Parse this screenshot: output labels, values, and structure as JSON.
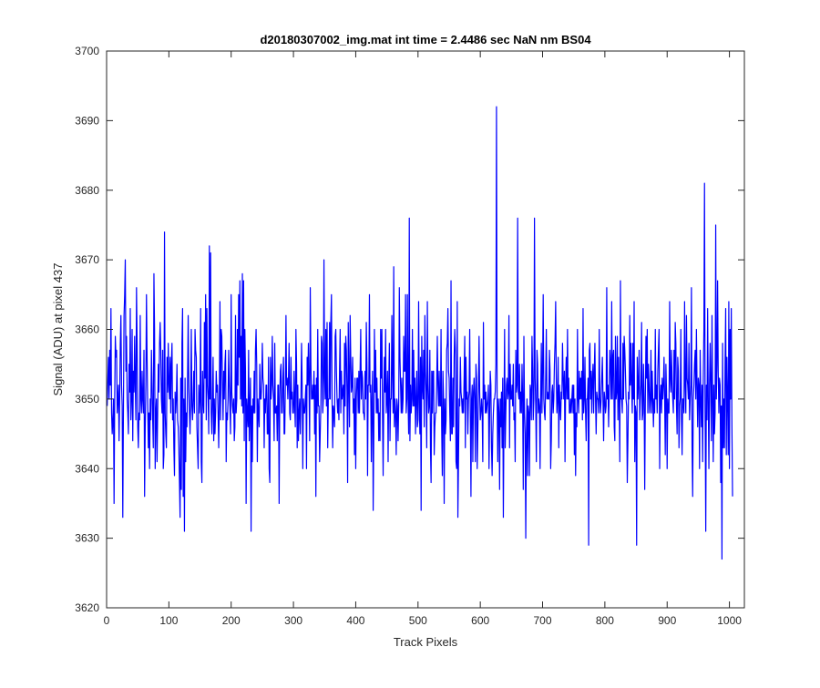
{
  "window": {
    "background": "#ffffff"
  },
  "chart_data": {
    "type": "line",
    "title": "d20180307002_img.mat int time = 2.4486 sec  NaN nm BS04",
    "xlabel": "Track Pixels",
    "ylabel": "Signal (ADU) at pixel 437",
    "xlim": [
      0,
      1024
    ],
    "ylim": [
      3620,
      3700
    ],
    "xticks": [
      0,
      100,
      200,
      300,
      400,
      500,
      600,
      700,
      800,
      900,
      1000
    ],
    "yticks": [
      3620,
      3630,
      3640,
      3650,
      3660,
      3670,
      3680,
      3690,
      3700
    ],
    "grid": false,
    "legend": "none",
    "series": [
      {
        "color": "#0000ff",
        "x_start": 1,
        "x_step": 1,
        "values": [
          3649,
          3653,
          3656,
          3650,
          3657,
          3652,
          3663,
          3648,
          3645,
          3647,
          3650,
          3635,
          3650,
          3659,
          3656,
          3657,
          3648,
          3650,
          3652,
          3644,
          3650,
          3658,
          3662,
          3652,
          3649,
          3633,
          3648,
          3662,
          3665,
          3670,
          3654,
          3659,
          3650,
          3648,
          3645,
          3655,
          3651,
          3663,
          3647,
          3650,
          3660,
          3644,
          3654,
          3651,
          3659,
          3652,
          3647,
          3666,
          3658,
          3646,
          3643,
          3648,
          3647,
          3662,
          3650,
          3648,
          3654,
          3650,
          3648,
          3657,
          3636,
          3646,
          3652,
          3665,
          3656,
          3649,
          3643,
          3648,
          3640,
          3650,
          3647,
          3657,
          3652,
          3647,
          3643,
          3668,
          3660,
          3640,
          3648,
          3650,
          3641,
          3648,
          3655,
          3651,
          3658,
          3661,
          3657,
          3650,
          3648,
          3657,
          3640,
          3642,
          3674,
          3648,
          3645,
          3643,
          3656,
          3651,
          3658,
          3652,
          3650,
          3656,
          3648,
          3655,
          3658,
          3647,
          3650,
          3643,
          3639,
          3651,
          3648,
          3650,
          3655,
          3647,
          3646,
          3643,
          3638,
          3633,
          3653,
          3637,
          3658,
          3663,
          3636,
          3650,
          3631,
          3653,
          3641,
          3648,
          3646,
          3653,
          3662,
          3652,
          3648,
          3645,
          3650,
          3660,
          3649,
          3647,
          3650,
          3654,
          3648,
          3660,
          3657,
          3656,
          3646,
          3643,
          3640,
          3652,
          3648,
          3650,
          3663,
          3641,
          3638,
          3654,
          3650,
          3648,
          3661,
          3653,
          3665,
          3647,
          3663,
          3652,
          3650,
          3645,
          3672,
          3650,
          3671,
          3648,
          3645,
          3650,
          3656,
          3644,
          3650,
          3645,
          3648,
          3654,
          3651,
          3652,
          3648,
          3643,
          3650,
          3664,
          3647,
          3660,
          3659,
          3652,
          3647,
          3654,
          3650,
          3655,
          3657,
          3641,
          3648,
          3647,
          3650,
          3657,
          3652,
          3649,
          3645,
          3665,
          3651,
          3649,
          3648,
          3650,
          3644,
          3646,
          3662,
          3648,
          3650,
          3660,
          3652,
          3665,
          3656,
          3667,
          3650,
          3659,
          3649,
          3668,
          3648,
          3667,
          3644,
          3660,
          3654,
          3635,
          3650,
          3648,
          3646,
          3657,
          3644,
          3649,
          3653,
          3631,
          3649,
          3641,
          3650,
          3648,
          3654,
          3648,
          3657,
          3660,
          3655,
          3641,
          3650,
          3648,
          3646,
          3655,
          3650,
          3650,
          3652,
          3658,
          3653,
          3652,
          3643,
          3650,
          3648,
          3652,
          3652,
          3645,
          3645,
          3656,
          3640,
          3638,
          3656,
          3650,
          3652,
          3659,
          3652,
          3650,
          3644,
          3658,
          3648,
          3648,
          3649,
          3644,
          3652,
          3652,
          3635,
          3650,
          3654,
          3655,
          3648,
          3648,
          3653,
          3656,
          3645,
          3645,
          3652,
          3662,
          3652,
          3653,
          3650,
          3653,
          3658,
          3648,
          3647,
          3656,
          3650,
          3651,
          3648,
          3648,
          3654,
          3649,
          3646,
          3660,
          3655,
          3643,
          3652,
          3644,
          3648,
          3650,
          3645,
          3650,
          3658,
          3652,
          3640,
          3650,
          3648,
          3648,
          3650,
          3652,
          3640,
          3656,
          3652,
          3658,
          3652,
          3644,
          3666,
          3655,
          3650,
          3650,
          3652,
          3650,
          3654,
          3645,
          3652,
          3636,
          3653,
          3648,
          3660,
          3649,
          3649,
          3641,
          3645,
          3649,
          3659,
          3658,
          3648,
          3650,
          3670,
          3653,
          3650,
          3660,
          3649,
          3661,
          3643,
          3650,
          3650,
          3661,
          3650,
          3661,
          3665,
          3650,
          3643,
          3649,
          3648,
          3646,
          3659,
          3660,
          3654,
          3650,
          3648,
          3650,
          3647,
          3654,
          3660,
          3648,
          3654,
          3650,
          3651,
          3652,
          3645,
          3658,
          3649,
          3659,
          3657,
          3651,
          3638,
          3661,
          3653,
          3646,
          3662,
          3656,
          3651,
          3652,
          3656,
          3648,
          3650,
          3642,
          3653,
          3640,
          3650,
          3653,
          3653,
          3648,
          3654,
          3648,
          3654,
          3660,
          3650,
          3654,
          3653,
          3648,
          3648,
          3647,
          3654,
          3650,
          3661,
          3655,
          3639,
          3652,
          3652,
          3665,
          3651,
          3652,
          3641,
          3650,
          3654,
          3634,
          3645,
          3660,
          3651,
          3657,
          3648,
          3653,
          3648,
          3650,
          3644,
          3648,
          3644,
          3660,
          3653,
          3660,
          3648,
          3639,
          3650,
          3656,
          3651,
          3660,
          3648,
          3650,
          3654,
          3641,
          3652,
          3658,
          3644,
          3650,
          3650,
          3662,
          3654,
          3648,
          3669,
          3646,
          3650,
          3648,
          3642,
          3650,
          3649,
          3644,
          3649,
          3666,
          3656,
          3652,
          3648,
          3653,
          3648,
          3650,
          3659,
          3654,
          3654,
          3665,
          3648,
          3650,
          3665,
          3650,
          3645,
          3676,
          3644,
          3652,
          3648,
          3650,
          3660,
          3649,
          3657,
          3649,
          3653,
          3645,
          3650,
          3654,
          3646,
          3647,
          3664,
          3650,
          3645,
          3656,
          3634,
          3659,
          3652,
          3650,
          3657,
          3646,
          3662,
          3654,
          3651,
          3643,
          3664,
          3652,
          3648,
          3649,
          3657,
          3643,
          3638,
          3654,
          3648,
          3654,
          3654,
          3642,
          3646,
          3648,
          3648,
          3652,
          3659,
          3652,
          3649,
          3654,
          3649,
          3649,
          3660,
          3646,
          3639,
          3654,
          3650,
          3635,
          3650,
          3645,
          3647,
          3657,
          3658,
          3663,
          3654,
          3653,
          3648,
          3644,
          3667,
          3645,
          3645,
          3653,
          3646,
          3656,
          3660,
          3657,
          3641,
          3640,
          3664,
          3633,
          3641,
          3650,
          3649,
          3656,
          3651,
          3650,
          3648,
          3650,
          3648,
          3653,
          3659,
          3643,
          3656,
          3650,
          3651,
          3645,
          3650,
          3651,
          3660,
          3648,
          3636,
          3650,
          3652,
          3641,
          3651,
          3653,
          3650,
          3641,
          3655,
          3653,
          3640,
          3645,
          3651,
          3659,
          3651,
          3647,
          3648,
          3650,
          3648,
          3641,
          3661,
          3650,
          3652,
          3648,
          3651,
          3648,
          3649,
          3650,
          3652,
          3640,
          3648,
          3654,
          3652,
          3643,
          3639,
          3645,
          3648,
          3650,
          3650,
          3651,
          3655,
          3692,
          3650,
          3641,
          3650,
          3648,
          3637,
          3650,
          3646,
          3651,
          3643,
          3653,
          3633,
          3647,
          3660,
          3643,
          3648,
          3652,
          3653,
          3650,
          3651,
          3662,
          3643,
          3655,
          3650,
          3650,
          3652,
          3649,
          3655,
          3647,
          3648,
          3641,
          3657,
          3651,
          3652,
          3676,
          3651,
          3650,
          3655,
          3648,
          3651,
          3648,
          3655,
          3650,
          3637,
          3659,
          3648,
          3645,
          3630,
          3645,
          3650,
          3639,
          3649,
          3648,
          3639,
          3652,
          3651,
          3647,
          3659,
          3654,
          3647,
          3650,
          3676,
          3653,
          3649,
          3641,
          3657,
          3655,
          3648,
          3650,
          3649,
          3640,
          3651,
          3658,
          3648,
          3654,
          3665,
          3650,
          3648,
          3647,
          3653,
          3660,
          3650,
          3651,
          3650,
          3650,
          3657,
          3654,
          3640,
          3644,
          3651,
          3652,
          3648,
          3650,
          3655,
          3658,
          3664,
          3653,
          3648,
          3650,
          3656,
          3643,
          3652,
          3649,
          3647,
          3651,
          3650,
          3658,
          3653,
          3650,
          3654,
          3641,
          3652,
          3656,
          3650,
          3660,
          3650,
          3653,
          3648,
          3648,
          3650,
          3648,
          3650,
          3652,
          3648,
          3652,
          3642,
          3650,
          3639,
          3648,
          3646,
          3660,
          3650,
          3648,
          3654,
          3650,
          3653,
          3650,
          3654,
          3647,
          3663,
          3648,
          3650,
          3656,
          3648,
          3644,
          3650,
          3650,
          3653,
          3629,
          3657,
          3658,
          3650,
          3654,
          3648,
          3653,
          3655,
          3648,
          3654,
          3658,
          3650,
          3645,
          3651,
          3650,
          3650,
          3648,
          3660,
          3650,
          3648,
          3650,
          3653,
          3656,
          3650,
          3644,
          3651,
          3650,
          3648,
          3649,
          3666,
          3650,
          3652,
          3646,
          3651,
          3657,
          3655,
          3650,
          3664,
          3650,
          3656,
          3657,
          3646,
          3644,
          3659,
          3650,
          3651,
          3659,
          3647,
          3656,
          3650,
          3641,
          3667,
          3650,
          3650,
          3648,
          3658,
          3650,
          3659,
          3657,
          3654,
          3650,
          3649,
          3638,
          3644,
          3651,
          3650,
          3662,
          3652,
          3658,
          3652,
          3648,
          3658,
          3650,
          3664,
          3641,
          3649,
          3648,
          3629,
          3656,
          3650,
          3652,
          3657,
          3647,
          3650,
          3652,
          3661,
          3647,
          3648,
          3655,
          3650,
          3637,
          3650,
          3659,
          3653,
          3660,
          3648,
          3655,
          3652,
          3648,
          3650,
          3657,
          3648,
          3654,
          3650,
          3646,
          3650,
          3648,
          3660,
          3650,
          3652,
          3648,
          3654,
          3657,
          3660,
          3640,
          3650,
          3652,
          3648,
          3653,
          3650,
          3652,
          3656,
          3650,
          3642,
          3655,
          3651,
          3640,
          3650,
          3648,
          3648,
          3664,
          3653,
          3651,
          3657,
          3652,
          3650,
          3648,
          3657,
          3650,
          3661,
          3658,
          3649,
          3645,
          3656,
          3654,
          3643,
          3649,
          3650,
          3660,
          3647,
          3642,
          3650,
          3650,
          3648,
          3664,
          3652,
          3648,
          3662,
          3653,
          3652,
          3650,
          3658,
          3647,
          3650,
          3652,
          3666,
          3643,
          3636,
          3650,
          3652,
          3655,
          3657,
          3650,
          3660,
          3652,
          3646,
          3653,
          3652,
          3640,
          3657,
          3650,
          3646,
          3652,
          3641,
          3653,
          3660,
          3681,
          3648,
          3631,
          3652,
          3647,
          3663,
          3650,
          3640,
          3652,
          3658,
          3652,
          3644,
          3662,
          3650,
          3641,
          3652,
          3645,
          3648,
          3675,
          3650,
          3655,
          3667,
          3654,
          3648,
          3653,
          3652,
          3638,
          3649,
          3627,
          3658,
          3643,
          3650,
          3643,
          3655,
          3663,
          3642,
          3656,
          3650,
          3642,
          3664,
          3640,
          3660,
          3650,
          3663,
          3646,
          3636
        ]
      }
    ]
  }
}
